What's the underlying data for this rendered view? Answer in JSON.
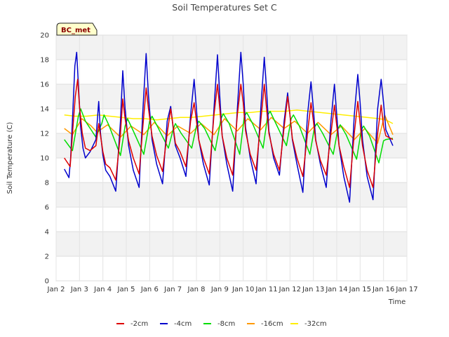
{
  "chart_data": {
    "type": "line",
    "title": "Soil Temperatures Set C",
    "xlabel": "Time",
    "ylabel": "Soil Temperature (C)",
    "badge": "BC_met",
    "xlim_days": [
      2,
      17
    ],
    "ylim": [
      0,
      20
    ],
    "x_ticks": [
      {
        "day": 2,
        "label": "Jan 2"
      },
      {
        "day": 3,
        "label": "Jan 3"
      },
      {
        "day": 4,
        "label": "Jan 4"
      },
      {
        "day": 5,
        "label": "Jan 5"
      },
      {
        "day": 6,
        "label": "Jan 6"
      },
      {
        "day": 7,
        "label": "Jan 7"
      },
      {
        "day": 8,
        "label": "Jan 8"
      },
      {
        "day": 9,
        "label": "Jan 9"
      },
      {
        "day": 10,
        "label": "Jan 10"
      },
      {
        "day": 11,
        "label": "Jan 11"
      },
      {
        "day": 12,
        "label": "Jan 12"
      },
      {
        "day": 13,
        "label": "Jan 13"
      },
      {
        "day": 14,
        "label": "Jan 14"
      },
      {
        "day": 15,
        "label": "Jan 15"
      },
      {
        "day": 16,
        "label": "Jan 16"
      },
      {
        "day": 17,
        "label": "Jan 17"
      }
    ],
    "y_ticks": [
      "0",
      "2",
      "4",
      "6",
      "8",
      "10",
      "12",
      "14",
      "16",
      "18",
      "20"
    ],
    "grid": true,
    "legend_position": "bottom",
    "series": [
      {
        "name": "-2cm",
        "color": "#dd0000",
        "x": [
          2.35,
          2.6,
          2.72,
          2.82,
          2.92,
          3.0,
          3.12,
          3.25,
          3.45,
          3.7,
          3.82,
          3.9,
          4.0,
          4.12,
          4.3,
          4.55,
          4.75,
          4.85,
          4.95,
          5.1,
          5.3,
          5.55,
          5.7,
          5.85,
          5.95,
          6.1,
          6.3,
          6.55,
          6.75,
          6.9,
          7.0,
          7.1,
          7.3,
          7.55,
          7.75,
          7.9,
          8.0,
          8.1,
          8.3,
          8.55,
          8.75,
          8.9,
          9.0,
          9.1,
          9.3,
          9.55,
          9.75,
          9.9,
          10.0,
          10.1,
          10.3,
          10.55,
          10.75,
          10.9,
          11.0,
          11.1,
          11.3,
          11.55,
          11.75,
          11.9,
          12.0,
          12.1,
          12.3,
          12.55,
          12.75,
          12.9,
          13.0,
          13.1,
          13.3,
          13.55,
          13.75,
          13.9,
          14.0,
          14.1,
          14.3,
          14.55,
          14.75,
          14.9,
          15.0,
          15.1,
          15.3,
          15.55,
          15.75,
          15.9,
          16.0,
          16.1,
          16.4
        ],
        "y": [
          10.0,
          9.3,
          12.5,
          15.0,
          16.4,
          14.2,
          12.0,
          10.8,
          10.6,
          11.0,
          12.8,
          11.8,
          10.5,
          9.5,
          9.2,
          8.2,
          12.0,
          14.8,
          13.2,
          11.4,
          10.0,
          8.7,
          12.3,
          15.7,
          14.0,
          11.8,
          10.2,
          8.9,
          12.0,
          14.0,
          12.6,
          11.2,
          10.5,
          9.3,
          13.0,
          14.5,
          13.0,
          11.5,
          10.0,
          8.7,
          13.5,
          16.0,
          14.0,
          11.8,
          10.0,
          8.6,
          13.5,
          16.0,
          14.5,
          12.2,
          10.3,
          9.0,
          13.0,
          16.0,
          14.0,
          12.0,
          10.3,
          9.0,
          12.5,
          15.0,
          13.5,
          11.6,
          10.0,
          8.5,
          12.0,
          14.5,
          13.0,
          11.4,
          9.8,
          8.6,
          12.0,
          14.3,
          12.6,
          11.0,
          9.3,
          7.6,
          12.0,
          14.6,
          12.8,
          11.0,
          9.0,
          7.6,
          12.0,
          14.3,
          12.6,
          11.8,
          11.5
        ]
      },
      {
        "name": "-4cm",
        "color": "#0000cc",
        "x": [
          2.35,
          2.55,
          2.62,
          2.72,
          2.8,
          2.88,
          2.95,
          3.05,
          3.15,
          3.25,
          3.45,
          3.7,
          3.82,
          3.9,
          4.0,
          4.12,
          4.3,
          4.55,
          4.75,
          4.85,
          4.95,
          5.1,
          5.3,
          5.55,
          5.7,
          5.85,
          5.95,
          6.1,
          6.3,
          6.55,
          6.75,
          6.9,
          7.0,
          7.1,
          7.3,
          7.55,
          7.75,
          7.9,
          8.0,
          8.1,
          8.3,
          8.55,
          8.75,
          8.9,
          9.0,
          9.1,
          9.3,
          9.55,
          9.75,
          9.9,
          10.0,
          10.1,
          10.3,
          10.55,
          10.75,
          10.9,
          11.0,
          11.1,
          11.3,
          11.55,
          11.75,
          11.9,
          12.0,
          12.1,
          12.3,
          12.55,
          12.75,
          12.9,
          13.0,
          13.1,
          13.3,
          13.55,
          13.75,
          13.9,
          14.0,
          14.1,
          14.3,
          14.55,
          14.75,
          14.9,
          15.0,
          15.1,
          15.3,
          15.55,
          15.75,
          15.9,
          16.0,
          16.1,
          16.4
        ],
        "y": [
          9.1,
          8.4,
          10.0,
          14.0,
          17.5,
          18.6,
          16.0,
          12.5,
          10.8,
          10.0,
          10.5,
          11.5,
          14.6,
          12.0,
          10.2,
          9.0,
          8.5,
          7.3,
          13.0,
          17.1,
          14.0,
          11.0,
          9.0,
          7.6,
          13.5,
          18.5,
          15.0,
          11.5,
          9.5,
          7.9,
          13.0,
          14.2,
          12.5,
          11.0,
          10.0,
          8.5,
          13.5,
          16.4,
          14.0,
          11.5,
          9.5,
          7.8,
          14.0,
          18.4,
          15.0,
          11.8,
          9.5,
          7.3,
          14.0,
          18.6,
          16.0,
          12.5,
          10.0,
          7.9,
          14.0,
          18.2,
          15.5,
          12.2,
          10.0,
          8.6,
          13.0,
          15.3,
          13.5,
          11.5,
          9.5,
          7.2,
          13.5,
          16.2,
          14.0,
          11.5,
          9.5,
          7.6,
          13.0,
          16.0,
          13.5,
          11.0,
          8.5,
          6.4,
          13.5,
          16.8,
          14.5,
          11.5,
          8.5,
          6.6,
          14.0,
          16.4,
          14.5,
          12.3,
          11.0
        ]
      },
      {
        "name": "-8cm",
        "color": "#00dd00",
        "x": [
          2.35,
          2.7,
          2.95,
          3.05,
          3.25,
          3.7,
          3.95,
          4.05,
          4.25,
          4.75,
          4.95,
          5.05,
          5.3,
          5.75,
          6.0,
          6.1,
          6.35,
          6.8,
          7.0,
          7.1,
          7.35,
          7.8,
          8.0,
          8.1,
          8.35,
          8.8,
          9.05,
          9.15,
          9.4,
          9.85,
          10.05,
          10.15,
          10.4,
          10.85,
          11.05,
          11.15,
          11.4,
          11.85,
          12.05,
          12.15,
          12.4,
          12.85,
          13.05,
          13.15,
          13.4,
          13.85,
          14.05,
          14.15,
          14.4,
          14.85,
          15.05,
          15.15,
          15.4,
          15.8,
          16.0,
          16.1,
          16.4
        ],
        "y": [
          11.5,
          10.6,
          13.4,
          14.0,
          13.0,
          11.7,
          12.8,
          13.5,
          12.7,
          10.2,
          12.6,
          13.2,
          12.2,
          10.3,
          13.0,
          13.4,
          12.5,
          10.8,
          12.3,
          12.8,
          12.0,
          10.8,
          12.6,
          13.0,
          12.4,
          10.6,
          13.2,
          13.6,
          12.8,
          10.3,
          13.4,
          13.7,
          12.8,
          10.8,
          13.5,
          13.8,
          12.8,
          11.0,
          13.2,
          13.5,
          12.6,
          10.3,
          12.5,
          12.8,
          12.0,
          10.3,
          12.4,
          12.7,
          11.9,
          9.9,
          12.3,
          12.6,
          11.8,
          9.6,
          11.4,
          11.5,
          11.6
        ]
      },
      {
        "name": "-16cm",
        "color": "#ff9900",
        "x": [
          2.35,
          2.7,
          3.1,
          3.5,
          3.75,
          4.2,
          4.75,
          5.2,
          5.75,
          6.2,
          6.75,
          7.2,
          7.75,
          8.2,
          8.75,
          9.2,
          9.75,
          10.2,
          10.75,
          11.2,
          11.75,
          12.2,
          12.75,
          13.2,
          13.75,
          14.2,
          14.75,
          15.2,
          15.75,
          16.05,
          16.4
        ],
        "y": [
          12.4,
          11.9,
          13.2,
          12.6,
          12.1,
          12.7,
          11.7,
          12.6,
          11.9,
          12.9,
          11.8,
          12.6,
          12.0,
          12.8,
          11.9,
          13.2,
          12.2,
          13.2,
          12.3,
          13.3,
          12.4,
          13.0,
          12.0,
          12.9,
          11.9,
          12.6,
          11.5,
          12.4,
          11.2,
          13.5,
          11.9
        ]
      },
      {
        "name": "-32cm",
        "color": "#ffee00",
        "x": [
          2.35,
          2.8,
          3.3,
          3.8,
          4.3,
          4.8,
          5.3,
          5.8,
          6.3,
          6.8,
          7.3,
          7.8,
          8.3,
          8.8,
          9.3,
          9.8,
          10.3,
          10.8,
          11.3,
          11.8,
          12.3,
          12.8,
          13.3,
          13.8,
          14.3,
          14.8,
          15.3,
          15.8,
          16.1,
          16.4
        ],
        "y": [
          13.5,
          13.4,
          13.4,
          13.5,
          13.4,
          13.3,
          13.2,
          13.2,
          13.1,
          13.2,
          13.3,
          13.3,
          13.4,
          13.5,
          13.6,
          13.7,
          13.7,
          13.8,
          13.8,
          13.8,
          13.9,
          13.8,
          13.7,
          13.6,
          13.5,
          13.4,
          13.3,
          13.2,
          13.1,
          12.8
        ]
      }
    ]
  }
}
